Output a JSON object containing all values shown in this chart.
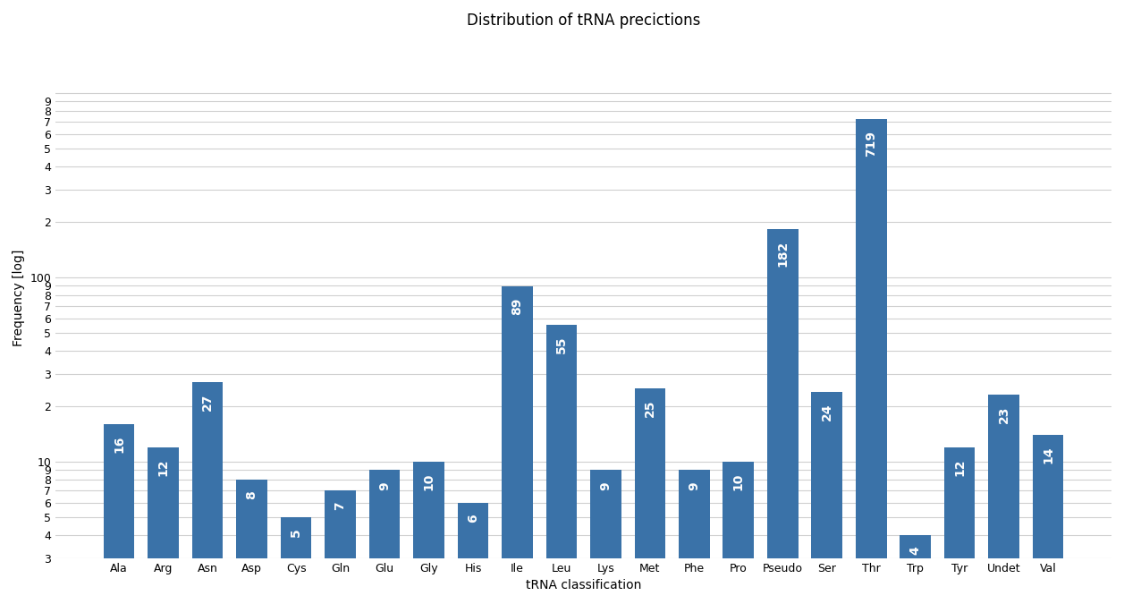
{
  "title": "Distribution of tRNA precictions",
  "xlabel": "tRNA classification",
  "ylabel": "Frequency [log]",
  "categories": [
    "Ala",
    "Arg",
    "Asn",
    "Asp",
    "Cys",
    "Gln",
    "Glu",
    "Gly",
    "His",
    "Ile",
    "Leu",
    "Lys",
    "Met",
    "Phe",
    "Pro",
    "Pseudo",
    "Ser",
    "Thr",
    "Trp",
    "Tyr",
    "Undet",
    "Val"
  ],
  "values": [
    16,
    12,
    27,
    8,
    5,
    7,
    9,
    10,
    6,
    89,
    55,
    9,
    25,
    9,
    10,
    182,
    24,
    719,
    4,
    12,
    23,
    14
  ],
  "bar_color": "#3a72a8",
  "label_color": "#ffffff",
  "background_color": "#ffffff",
  "grid_color": "#d0d0d0",
  "title_fontsize": 12,
  "axis_label_fontsize": 10,
  "tick_fontsize": 9,
  "bar_label_fontsize": 10,
  "ylim_min": 3,
  "ylim_max": 2000
}
